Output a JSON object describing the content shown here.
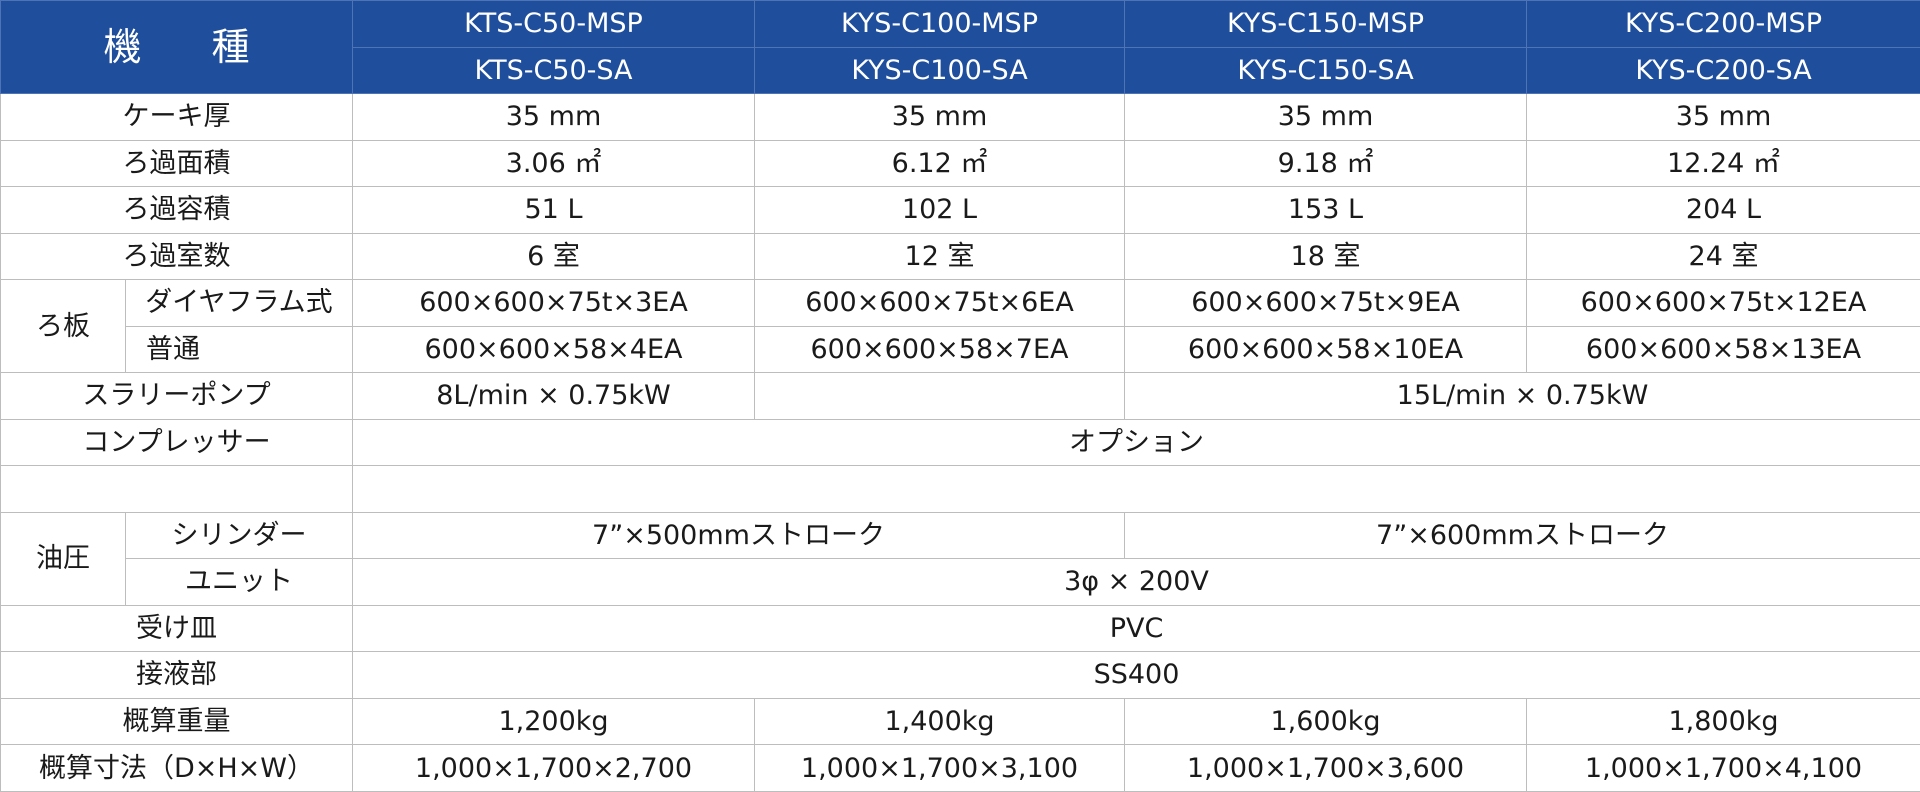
{
  "header": {
    "title_left": "機",
    "title_right": "種",
    "models_msp": [
      "KTS-C50-MSP",
      "KYS-C100-MSP",
      "KYS-C150-MSP",
      "KYS-C200-MSP"
    ],
    "models_sa": [
      "KTS-C50-SA",
      "KYS-C100-SA",
      "KYS-C150-SA",
      "KYS-C200-SA"
    ]
  },
  "rows": {
    "cake": {
      "label": "ケーキ厚",
      "values": [
        "35 mm",
        "35 mm",
        "35 mm",
        "35 mm"
      ]
    },
    "area": {
      "label": "ろ過面積",
      "values": [
        "3.06 ㎡",
        "6.12 ㎡",
        "9.18 ㎡",
        "12.24 ㎡"
      ]
    },
    "volume": {
      "label": "ろ過容積",
      "values": [
        "51 L",
        "102 L",
        "153 L",
        "204 L"
      ]
    },
    "chambers": {
      "label": "ろ過室数",
      "values": [
        "6 室",
        "12 室",
        "18 室",
        "24 室"
      ]
    },
    "plate": {
      "group_label": "ろ板",
      "diaphragm": {
        "label": "ダイヤフラム式",
        "values": [
          "600×600×75t×3EA",
          "600×600×75t×6EA",
          "600×600×75t×9EA",
          "600×600×75t×12EA"
        ]
      },
      "normal": {
        "label": "普通",
        "values": [
          "600×600×58×4EA",
          "600×600×58×7EA",
          "600×600×58×10EA",
          "600×600×58×13EA"
        ]
      }
    },
    "pump": {
      "label": "スラリーポンプ",
      "value_small": "8L/min × 0.75kW",
      "value_large": "15L/min × 0.75kW"
    },
    "compressor": {
      "label": "コンプレッサー",
      "value": "オプション"
    },
    "hydraulic": {
      "group_label": "油圧",
      "cylinder": {
        "label": "シリンダー",
        "value_a": "7”×500mmストローク",
        "value_b": "7”×600mmストローク"
      },
      "unit": {
        "label": "ユニット",
        "value": "3φ × 200V"
      }
    },
    "tray": {
      "label": "受け皿",
      "value": "PVC"
    },
    "wetted": {
      "label": "接液部",
      "value": "SS400"
    },
    "weight": {
      "label": "概算重量",
      "values": [
        "1,200kg",
        "1,400kg",
        "1,600kg",
        "1,800kg"
      ]
    },
    "dims": {
      "label": "概算寸法（D×H×W）",
      "values": [
        "1,000×1,700×2,700",
        "1,000×1,700×3,100",
        "1,000×1,700×3,600",
        "1,000×1,700×4,100"
      ]
    }
  }
}
